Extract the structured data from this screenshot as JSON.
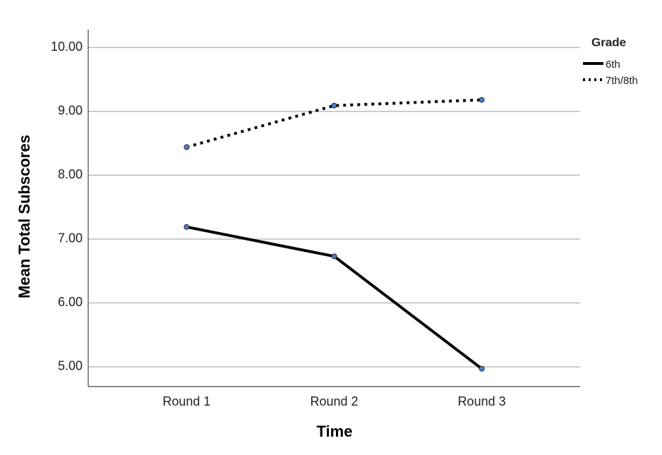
{
  "chart_data": {
    "type": "line",
    "x_label": "Time",
    "y_label": "Mean Total Subscores",
    "categories": [
      "Round 1",
      "Round 2",
      "Round 3"
    ],
    "series": [
      {
        "name": "6th",
        "color": "#000000",
        "line_style": "solid",
        "values": [
          7.19,
          6.73,
          4.97
        ]
      },
      {
        "name": "7th/8th",
        "color": "#000000",
        "line_style": "dotted",
        "values": [
          8.44,
          9.09,
          9.18
        ]
      }
    ],
    "marker_color": "#4a7fcf",
    "legend_title": "Grade",
    "legend_position": "top-right",
    "ylim": [
      4.69,
      10.28
    ],
    "yticks": [
      {
        "value": 5,
        "label": "5.00"
      },
      {
        "value": 6,
        "label": "6.00"
      },
      {
        "value": 7,
        "label": "7.00"
      },
      {
        "value": 8,
        "label": "8.00"
      },
      {
        "value": 9,
        "label": "9.00"
      },
      {
        "value": 10,
        "label": "10.00"
      }
    ],
    "grid": true
  }
}
